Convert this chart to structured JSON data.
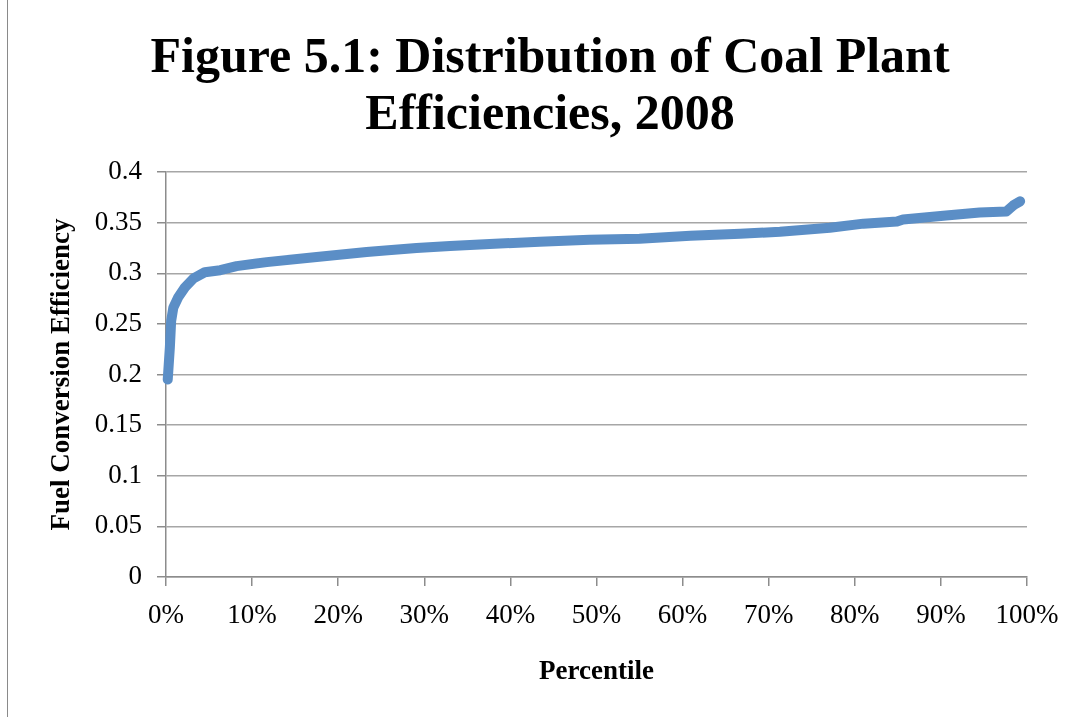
{
  "chart_data": {
    "type": "line",
    "title": "Figure 5.1: Distribution of Coal Plant Efficiencies, 2008",
    "xlabel": "Percentile",
    "ylabel": "Fuel Conversion Efficiency",
    "x": [
      0.2,
      0.45,
      0.6,
      0.85,
      1.4,
      2.2,
      3.2,
      4.5,
      6.3,
      8.2,
      11.7,
      17.5,
      23.3,
      29.1,
      33,
      37.6,
      43.4,
      49.2,
      55,
      60.9,
      66.7,
      71.3,
      77.1,
      81,
      84.9,
      85.6,
      90.6,
      94.5,
      97.6,
      98.4,
      99.2
    ],
    "series": [
      {
        "color": "#5b8ec6",
        "values": [
          0.195,
          0.227,
          0.253,
          0.266,
          0.276,
          0.286,
          0.295,
          0.301,
          0.303,
          0.307,
          0.311,
          0.316,
          0.321,
          0.325,
          0.327,
          0.329,
          0.331,
          0.333,
          0.334,
          0.337,
          0.339,
          0.341,
          0.345,
          0.349,
          0.351,
          0.353,
          0.357,
          0.36,
          0.361,
          0.367,
          0.371
        ]
      }
    ],
    "xlim": [
      0,
      100
    ],
    "xticks": [
      {
        "value": 0,
        "label": "0%"
      },
      {
        "value": 10,
        "label": "10%"
      },
      {
        "value": 20,
        "label": "20%"
      },
      {
        "value": 30,
        "label": "30%"
      },
      {
        "value": 40,
        "label": "40%"
      },
      {
        "value": 50,
        "label": "50%"
      },
      {
        "value": 60,
        "label": "60%"
      },
      {
        "value": 70,
        "label": "70%"
      },
      {
        "value": 80,
        "label": "80%"
      },
      {
        "value": 90,
        "label": "90%"
      },
      {
        "value": 100,
        "label": "100%"
      }
    ],
    "ylim": [
      0,
      0.4
    ],
    "yticks": [
      0,
      0.05,
      0.1,
      0.15,
      0.2,
      0.25,
      0.3,
      0.35,
      0.4
    ],
    "grid": "y"
  }
}
